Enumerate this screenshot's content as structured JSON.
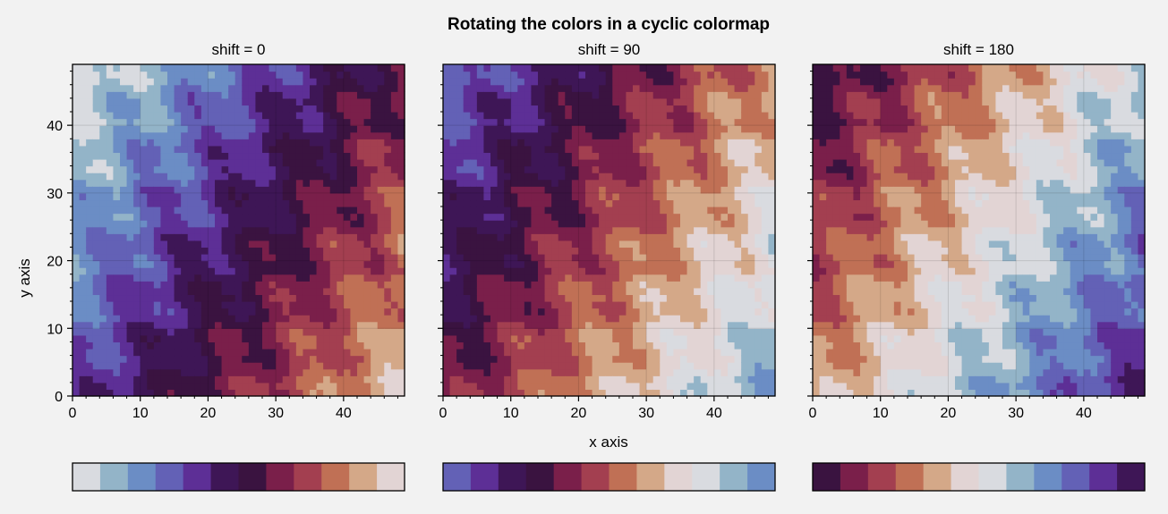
{
  "figure": {
    "suptitle": "Rotating the colors in a cyclic colormap",
    "xlabel": "x axis",
    "ylabel": "y axis"
  },
  "chart_data": [
    {
      "type": "heatmap",
      "title": "shift = 0",
      "shift": 0,
      "xlim": [
        0,
        49
      ],
      "ylim": [
        0,
        49
      ],
      "xticks": [
        0,
        10,
        20,
        30,
        40
      ],
      "yticks": [
        0,
        10,
        20,
        30,
        40
      ],
      "grid": true,
      "colorbar_colors": [
        "#d9dbe0",
        "#93b4c8",
        "#6b8dc5",
        "#6361b6",
        "#5d2f96",
        "#3e1656",
        "#3a1340",
        "#7a1f4a",
        "#a33f50",
        "#c07055",
        "#d4a888",
        "#e2d4d4"
      ]
    },
    {
      "type": "heatmap",
      "title": "shift = 90",
      "shift": 90,
      "xlim": [
        0,
        49
      ],
      "ylim": [
        0,
        49
      ],
      "xticks": [
        0,
        10,
        20,
        30,
        40
      ],
      "yticks": [],
      "grid": true,
      "colorbar_colors": [
        "#6361b6",
        "#5d2f96",
        "#3e1656",
        "#3a1340",
        "#7a1f4a",
        "#a33f50",
        "#c07055",
        "#d4a888",
        "#e2d4d4",
        "#d9dbe0",
        "#93b4c8",
        "#6b8dc5"
      ]
    },
    {
      "type": "heatmap",
      "title": "shift = 180",
      "shift": 180,
      "xlim": [
        0,
        49
      ],
      "ylim": [
        0,
        49
      ],
      "xticks": [
        0,
        10,
        20,
        30,
        40
      ],
      "yticks": [],
      "grid": true,
      "colorbar_colors": [
        "#3a1340",
        "#7a1f4a",
        "#a33f50",
        "#c07055",
        "#d4a888",
        "#e2d4d4",
        "#d9dbe0",
        "#93b4c8",
        "#6b8dc5",
        "#6361b6",
        "#5d2f96",
        "#3e1656"
      ]
    }
  ]
}
